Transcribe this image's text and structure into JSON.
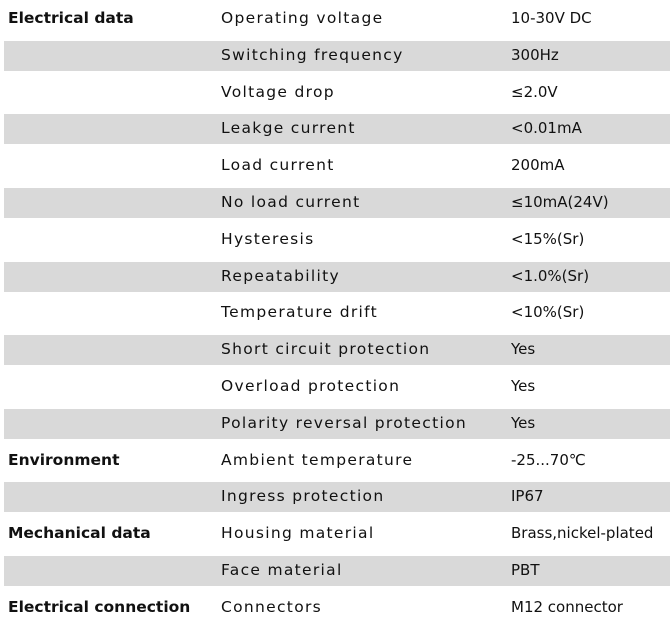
{
  "sections": [
    {
      "title": "Electrical data",
      "rows": [
        [
          "Operating voltage",
          "10-30V DC"
        ],
        [
          "Switching frequency",
          "300Hz"
        ],
        [
          "Voltage drop",
          "≤2.0V"
        ],
        [
          "Leakge current",
          "<0.01mA"
        ],
        [
          "Load current",
          "200mA"
        ],
        [
          "No load current",
          "≤10mA(24V)"
        ],
        [
          "Hysteresis",
          "<15%(Sr)"
        ],
        [
          "Repeatability",
          "<1.0%(Sr)"
        ],
        [
          "Temperature drift",
          "<10%(Sr)"
        ],
        [
          "Short circuit protection",
          "Yes"
        ],
        [
          "Overload protection",
          "Yes"
        ],
        [
          "Polarity reversal protection",
          "Yes"
        ]
      ]
    },
    {
      "title": "Environment",
      "rows": [
        [
          "Ambient temperature",
          "-25...70℃"
        ],
        [
          "Ingress protection",
          "IP67"
        ]
      ]
    },
    {
      "title": "Mechanical data",
      "rows": [
        [
          "Housing material",
          "Brass,nickel-plated"
        ],
        [
          "Face material",
          "PBT"
        ]
      ]
    },
    {
      "title": "Electrical connection",
      "rows": [
        [
          "Connectors",
          "M12 connector"
        ]
      ]
    }
  ]
}
